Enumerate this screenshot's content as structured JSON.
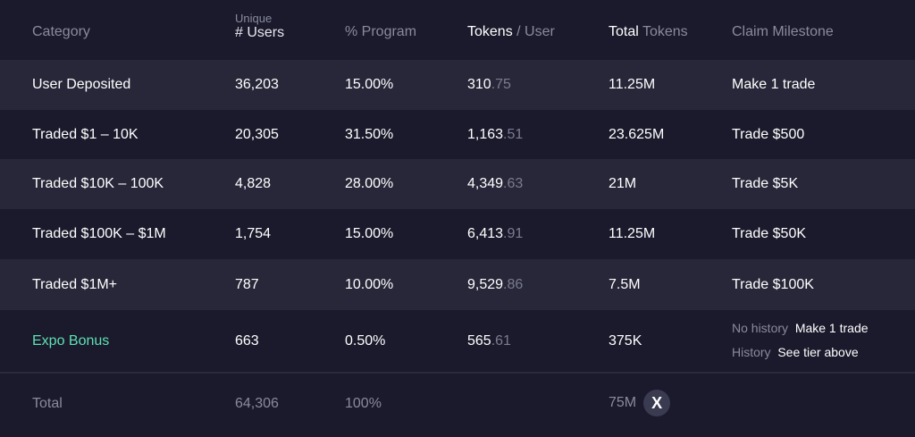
{
  "header": {
    "category": "Category",
    "users_top": "Unique",
    "users": "# Users",
    "program": "% Program",
    "tokens_user_a": "Tokens",
    "tokens_user_b": " / User",
    "total_tokens_a": "Total",
    "total_tokens_b": " Tokens",
    "milestone": "Claim Milestone"
  },
  "rows": [
    {
      "category": "User Deposited",
      "users": "36,203",
      "program": "15.00%",
      "tpu_int": "310",
      "tpu_dec": ".75",
      "total": "11.25M",
      "milestone": "Make 1 trade"
    },
    {
      "category": "Traded $1 – 10K",
      "users": "20,305",
      "program": "31.50%",
      "tpu_int": "1,163",
      "tpu_dec": ".51",
      "total": "23.625M",
      "milestone": "Trade $500"
    },
    {
      "category": "Traded $10K – 100K",
      "users": "4,828",
      "program": "28.00%",
      "tpu_int": "4,349",
      "tpu_dec": ".63",
      "total": "21M",
      "milestone": "Trade $5K"
    },
    {
      "category": "Traded $100K – $1M",
      "users": "1,754",
      "program": "15.00%",
      "tpu_int": "6,413",
      "tpu_dec": ".91",
      "total": "11.25M",
      "milestone": "Trade $50K"
    },
    {
      "category": "Traded $1M+",
      "users": "787",
      "program": "10.00%",
      "tpu_int": "9,529",
      "tpu_dec": ".86",
      "total": "7.5M",
      "milestone": "Trade $100K"
    }
  ],
  "expo": {
    "category": "Expo Bonus",
    "users": "663",
    "program": "0.50%",
    "tpu_int": "565",
    "tpu_dec": ".61",
    "total": "375K",
    "no_history_label": "No history",
    "no_history_value": "Make 1 trade",
    "history_label": "History",
    "history_value": "See tier above",
    "accent": "#5ee0b3"
  },
  "total": {
    "label": "Total",
    "users": "64,306",
    "program": "100%",
    "total": "75M",
    "badge": "X",
    "badge_icon": "x-logo-icon"
  }
}
